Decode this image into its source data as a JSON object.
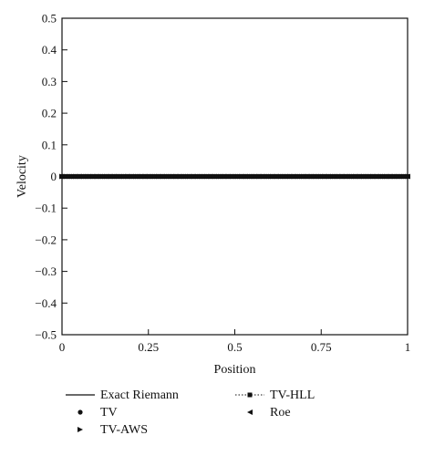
{
  "chart_data": {
    "type": "line",
    "xlabel": "Position",
    "ylabel": "Velocity",
    "xlim": [
      0,
      1
    ],
    "ylim": [
      -0.5,
      0.5
    ],
    "xticks": [
      0,
      0.25,
      0.5,
      0.75,
      1
    ],
    "xtick_labels": [
      "0",
      "0.25",
      "0.5",
      "0.75",
      "1"
    ],
    "yticks": [
      0.5,
      0.4,
      0.3,
      0.2,
      0.1,
      0,
      -0.1,
      -0.2,
      -0.3,
      -0.4,
      -0.5
    ],
    "ytick_labels": [
      "0.5",
      "0.4",
      "0.3",
      "0.2",
      "0.1",
      "0",
      "−0.1",
      "−0.2",
      "−0.3",
      "−0.4",
      "−0.5"
    ],
    "grid": false,
    "legend_position": "bottom",
    "series": [
      {
        "name": "Exact Riemann",
        "style": "solid-line",
        "x": [
          0,
          1
        ],
        "y": [
          0,
          0
        ]
      },
      {
        "name": "TV-HLL",
        "style": "dotted-line-square-marker",
        "x": [
          0,
          1
        ],
        "y": [
          0,
          0
        ]
      },
      {
        "name": "TV",
        "style": "circle-marker",
        "x": [
          0,
          1
        ],
        "y": [
          0,
          0
        ]
      },
      {
        "name": "Roe",
        "style": "left-triangle-marker",
        "x": [
          0,
          1
        ],
        "y": [
          0,
          0
        ]
      },
      {
        "name": "TV-AWS",
        "style": "right-triangle-marker",
        "x": [
          0,
          1
        ],
        "y": [
          0,
          0
        ]
      }
    ]
  }
}
